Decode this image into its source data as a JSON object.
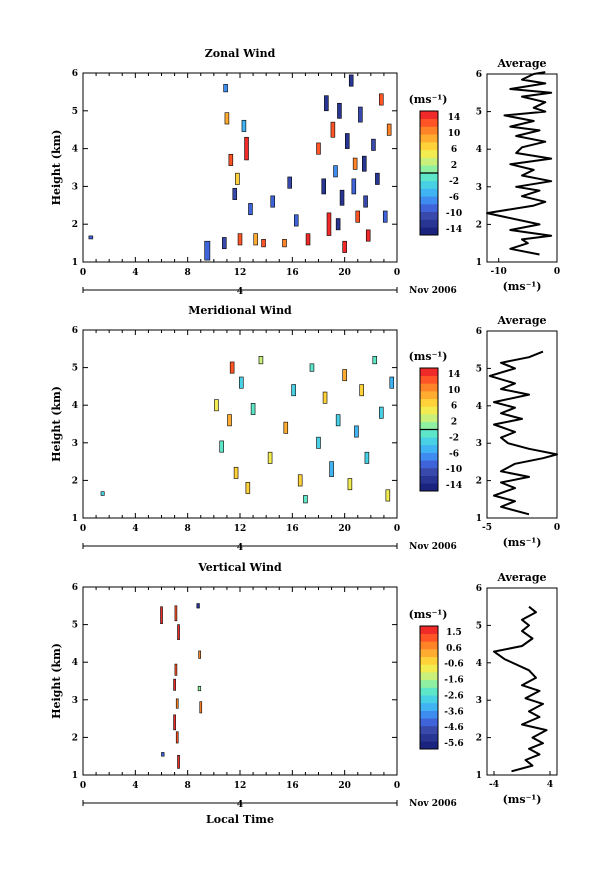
{
  "chart_data": [
    {
      "type": "heatmap",
      "title": "Zonal Wind",
      "ylabel": "Height (km)",
      "xticks": [
        "0",
        "4",
        "8",
        "12",
        "16",
        "20",
        "0"
      ],
      "yticks": [
        "1",
        "2",
        "3",
        "4",
        "5",
        "6"
      ],
      "xlim": [
        0,
        24
      ],
      "ylim": [
        1,
        6
      ],
      "day_label": "4",
      "month_label": "Nov 2006",
      "colorbar": {
        "unit": "(ms⁻¹)",
        "ticks": [
          "14",
          "10",
          "6",
          "2",
          "-2",
          "-6",
          "-10",
          "-14"
        ],
        "range": [
          -16,
          16
        ],
        "colors": [
          "#1a237e",
          "#283593",
          "#3949ab",
          "#3f63d8",
          "#3f8cf0",
          "#40b4f2",
          "#48d1e4",
          "#5ee6c8",
          "#8ef0a0",
          "#c8f07a",
          "#f2ec50",
          "#ffd23a",
          "#ffac30",
          "#ff8428",
          "#ff5426",
          "#f02a28"
        ]
      },
      "cells": [
        [
          0.6,
          1.65,
          -10,
          0.3,
          0.08
        ],
        [
          9.5,
          1.3,
          -10,
          0.4,
          0.5
        ],
        [
          10.8,
          1.5,
          -12,
          0.3,
          0.3
        ],
        [
          10.9,
          5.6,
          -8,
          0.3,
          0.2
        ],
        [
          11.0,
          4.8,
          8,
          0.3,
          0.3
        ],
        [
          11.3,
          3.7,
          12,
          0.3,
          0.3
        ],
        [
          11.6,
          2.8,
          -12,
          0.3,
          0.3
        ],
        [
          12.0,
          1.6,
          12,
          0.3,
          0.3
        ],
        [
          11.8,
          3.2,
          6,
          0.3,
          0.3
        ],
        [
          12.3,
          4.6,
          -6,
          0.3,
          0.3
        ],
        [
          12.5,
          4.0,
          14,
          0.3,
          0.6
        ],
        [
          12.8,
          2.4,
          -10,
          0.3,
          0.3
        ],
        [
          13.2,
          1.6,
          8,
          0.3,
          0.3
        ],
        [
          13.8,
          1.5,
          12,
          0.3,
          0.2
        ],
        [
          14.5,
          2.6,
          -10,
          0.3,
          0.3
        ],
        [
          15.4,
          1.5,
          10,
          0.3,
          0.2
        ],
        [
          15.8,
          3.1,
          -12,
          0.3,
          0.3
        ],
        [
          16.3,
          2.1,
          -10,
          0.3,
          0.3
        ],
        [
          17.2,
          1.6,
          14,
          0.3,
          0.3
        ],
        [
          18.0,
          4.0,
          12,
          0.3,
          0.3
        ],
        [
          18.4,
          3.0,
          -14,
          0.3,
          0.4
        ],
        [
          18.6,
          5.2,
          -14,
          0.3,
          0.4
        ],
        [
          18.8,
          2.0,
          14,
          0.3,
          0.6
        ],
        [
          19.1,
          4.5,
          12,
          0.3,
          0.4
        ],
        [
          19.3,
          3.4,
          -8,
          0.3,
          0.3
        ],
        [
          19.6,
          5.0,
          -14,
          0.3,
          0.4
        ],
        [
          19.8,
          2.7,
          -14,
          0.3,
          0.4
        ],
        [
          20.0,
          1.4,
          14,
          0.3,
          0.3
        ],
        [
          20.2,
          4.2,
          -14,
          0.3,
          0.4
        ],
        [
          20.5,
          5.8,
          -14,
          0.3,
          0.3
        ],
        [
          20.7,
          3.0,
          -10,
          0.3,
          0.4
        ],
        [
          21.0,
          2.2,
          12,
          0.3,
          0.3
        ],
        [
          21.2,
          4.9,
          -12,
          0.3,
          0.4
        ],
        [
          21.5,
          3.6,
          -14,
          0.3,
          0.4
        ],
        [
          21.8,
          1.7,
          14,
          0.3,
          0.3
        ],
        [
          22.2,
          4.1,
          -12,
          0.3,
          0.3
        ],
        [
          22.5,
          3.2,
          -14,
          0.3,
          0.3
        ],
        [
          22.8,
          5.3,
          12,
          0.3,
          0.3
        ],
        [
          23.1,
          2.2,
          -10,
          0.3,
          0.3
        ],
        [
          23.4,
          4.5,
          10,
          0.3,
          0.3
        ],
        [
          19.5,
          2.0,
          -14,
          0.3,
          0.3
        ],
        [
          20.8,
          3.6,
          10,
          0.3,
          0.3
        ],
        [
          21.6,
          2.6,
          -12,
          0.3,
          0.3
        ]
      ],
      "profile": {
        "title": "Average",
        "xlabel": "(ms⁻¹)",
        "xticks": [
          "-10",
          "0"
        ],
        "xlim": [
          -12,
          0
        ],
        "ylim": [
          1,
          6
        ],
        "yticks": [
          "1",
          "2",
          "3",
          "4",
          "5",
          "6"
        ],
        "x": [
          -3,
          -8,
          -5,
          -6,
          -1,
          -8,
          -3,
          -9,
          -12,
          -4,
          -2,
          -6,
          -3,
          -7,
          -1,
          -6,
          -4,
          -8,
          -1,
          -7,
          -6,
          -2,
          -7,
          -3,
          -8,
          -4,
          -9,
          -2,
          -4,
          -2,
          -6,
          -1,
          -8,
          -2,
          -6,
          -4,
          -2
        ],
        "y": [
          1.2,
          1.35,
          1.5,
          1.6,
          1.7,
          1.85,
          2.0,
          2.2,
          2.3,
          2.5,
          2.6,
          2.75,
          2.9,
          3.0,
          3.15,
          3.3,
          3.45,
          3.6,
          3.75,
          3.9,
          4.05,
          4.2,
          4.35,
          4.5,
          4.6,
          4.75,
          4.9,
          5.0,
          5.1,
          5.25,
          5.4,
          5.5,
          5.6,
          5.75,
          5.85,
          6.0,
          6.05
        ]
      }
    },
    {
      "type": "heatmap",
      "title": "Meridional Wind",
      "ylabel": "Height (km)",
      "xticks": [
        "0",
        "4",
        "8",
        "12",
        "16",
        "20",
        "0"
      ],
      "yticks": [
        "1",
        "2",
        "3",
        "4",
        "5",
        "6"
      ],
      "xlim": [
        0,
        24
      ],
      "ylim": [
        1,
        6
      ],
      "day_label": "4",
      "month_label": "Nov 2006",
      "colorbar": {
        "unit": "(ms⁻¹)",
        "ticks": [
          "14",
          "10",
          "6",
          "2",
          "-2",
          "-6",
          "-10",
          "-14"
        ],
        "range": [
          -16,
          16
        ],
        "colors": [
          "#1a237e",
          "#283593",
          "#3949ab",
          "#3f63d8",
          "#3f8cf0",
          "#40b4f2",
          "#48d1e4",
          "#5ee6c8",
          "#8ef0a0",
          "#c8f07a",
          "#f2ec50",
          "#ffd23a",
          "#ffac30",
          "#ff8428",
          "#ff5426",
          "#f02a28"
        ]
      },
      "cells": [
        [
          1.5,
          1.65,
          -4,
          0.25,
          0.1
        ],
        [
          10.2,
          4.0,
          4,
          0.3,
          0.3
        ],
        [
          10.6,
          2.9,
          -2,
          0.3,
          0.3
        ],
        [
          11.2,
          3.6,
          8,
          0.3,
          0.3
        ],
        [
          11.4,
          5.0,
          12,
          0.3,
          0.3
        ],
        [
          11.7,
          2.2,
          6,
          0.3,
          0.3
        ],
        [
          12.1,
          4.6,
          -4,
          0.3,
          0.3
        ],
        [
          12.6,
          1.8,
          6,
          0.3,
          0.3
        ],
        [
          13.0,
          3.9,
          -2,
          0.3,
          0.3
        ],
        [
          13.6,
          5.2,
          2,
          0.3,
          0.2
        ],
        [
          14.3,
          2.6,
          4,
          0.3,
          0.3
        ],
        [
          15.5,
          3.4,
          8,
          0.3,
          0.3
        ],
        [
          16.1,
          4.4,
          -4,
          0.3,
          0.3
        ],
        [
          16.6,
          2.0,
          6,
          0.3,
          0.3
        ],
        [
          17.5,
          5.0,
          -2,
          0.3,
          0.2
        ],
        [
          18.0,
          3.0,
          -4,
          0.3,
          0.3
        ],
        [
          18.5,
          4.2,
          6,
          0.3,
          0.3
        ],
        [
          19.0,
          2.3,
          -6,
          0.3,
          0.4
        ],
        [
          19.5,
          3.6,
          -4,
          0.3,
          0.3
        ],
        [
          20.0,
          4.8,
          8,
          0.3,
          0.3
        ],
        [
          20.4,
          1.9,
          4,
          0.3,
          0.3
        ],
        [
          20.9,
          3.3,
          -6,
          0.3,
          0.3
        ],
        [
          21.3,
          4.4,
          6,
          0.3,
          0.3
        ],
        [
          21.7,
          2.6,
          -4,
          0.3,
          0.3
        ],
        [
          22.3,
          5.2,
          -2,
          0.3,
          0.2
        ],
        [
          22.8,
          3.8,
          -4,
          0.3,
          0.3
        ],
        [
          23.3,
          1.6,
          4,
          0.3,
          0.3
        ],
        [
          23.6,
          4.6,
          -6,
          0.3,
          0.3
        ],
        [
          17.0,
          1.5,
          -2,
          0.3,
          0.2
        ]
      ],
      "profile": {
        "title": "Average",
        "xlabel": "(ms⁻¹)",
        "xticks": [
          "-5",
          "0"
        ],
        "xlim": [
          -5,
          0
        ],
        "ylim": [
          1,
          6
        ],
        "yticks": [
          "1",
          "2",
          "3",
          "4",
          "5",
          "6"
        ],
        "x": [
          -2,
          -4,
          -3,
          -4.5,
          -3,
          -4,
          -2,
          -4,
          -3,
          -1,
          0,
          -2,
          -3.5,
          -4,
          -3,
          -4.5,
          -2.5,
          -4,
          -3,
          -4.5,
          -2,
          -4,
          -3,
          -4.8,
          -3,
          -4,
          -2,
          -1
        ],
        "y": [
          1.1,
          1.3,
          1.45,
          1.6,
          1.8,
          1.95,
          2.1,
          2.25,
          2.45,
          2.6,
          2.7,
          2.85,
          3.0,
          3.15,
          3.3,
          3.5,
          3.65,
          3.8,
          3.95,
          4.1,
          4.3,
          4.45,
          4.6,
          4.8,
          5.0,
          5.15,
          5.3,
          5.45
        ]
      }
    },
    {
      "type": "heatmap",
      "title": "Vertical Wind",
      "ylabel": "Height (km)",
      "xlabel": "Local Time",
      "xticks": [
        "0",
        "4",
        "8",
        "12",
        "16",
        "20",
        "0"
      ],
      "yticks": [
        "1",
        "2",
        "3",
        "4",
        "5",
        "6"
      ],
      "xlim": [
        0,
        24
      ],
      "ylim": [
        1,
        6
      ],
      "day_label": "4",
      "month_label": "Nov 2006",
      "colorbar": {
        "unit": "(ms⁻¹)",
        "ticks": [
          "1.5",
          "0.6",
          "-0.6",
          "-1.6",
          "-2.6",
          "-3.6",
          "-4.6",
          "-5.6"
        ],
        "range": [
          -6.2,
          2.0
        ],
        "colors": [
          "#1a237e",
          "#283593",
          "#3949ab",
          "#3f63d8",
          "#3f8cf0",
          "#40b4f2",
          "#48d1e4",
          "#5ee6c8",
          "#8ef0a0",
          "#c8f07a",
          "#f2ec50",
          "#ffd23a",
          "#ffac30",
          "#ff8428",
          "#ff5426",
          "#f02a28"
        ]
      },
      "cells": [
        [
          6.0,
          5.25,
          1.5,
          0.15,
          0.45
        ],
        [
          7.1,
          5.3,
          1.2,
          0.15,
          0.4
        ],
        [
          7.3,
          4.8,
          1.5,
          0.15,
          0.4
        ],
        [
          7.1,
          3.8,
          1.0,
          0.15,
          0.3
        ],
        [
          7.0,
          3.4,
          1.5,
          0.15,
          0.3
        ],
        [
          7.2,
          2.9,
          0.6,
          0.15,
          0.25
        ],
        [
          7.0,
          2.4,
          1.5,
          0.15,
          0.4
        ],
        [
          7.2,
          2.0,
          1.2,
          0.15,
          0.3
        ],
        [
          7.3,
          1.35,
          1.5,
          0.15,
          0.35
        ],
        [
          6.1,
          1.55,
          -4.6,
          0.2,
          0.1
        ],
        [
          8.8,
          5.5,
          -5.6,
          0.2,
          0.12
        ],
        [
          8.9,
          4.2,
          0.6,
          0.12,
          0.2
        ],
        [
          8.9,
          3.3,
          -1.6,
          0.2,
          0.12
        ],
        [
          9.0,
          2.8,
          0.6,
          0.15,
          0.3
        ]
      ],
      "profile": {
        "title": "Average",
        "xlabel": "(ms⁻¹)",
        "xticks": [
          "-4",
          "4"
        ],
        "xlim": [
          -5,
          5
        ],
        "ylim": [
          1,
          6
        ],
        "yticks": [
          "1",
          "2",
          "3",
          "4",
          "5",
          "6"
        ],
        "x": [
          -1.5,
          1.5,
          0.5,
          2.5,
          1,
          3,
          1.5,
          3.5,
          0,
          2.5,
          1,
          3,
          0.5,
          2.5,
          0,
          2,
          1,
          -2.5,
          -4,
          0,
          1.5,
          0,
          1,
          0,
          2,
          1
        ],
        "y": [
          1.1,
          1.25,
          1.4,
          1.55,
          1.7,
          1.85,
          2.0,
          2.2,
          2.35,
          2.55,
          2.7,
          2.9,
          3.05,
          3.25,
          3.4,
          3.6,
          3.8,
          4.1,
          4.3,
          4.45,
          4.65,
          4.85,
          5.0,
          5.15,
          5.35,
          5.5
        ]
      }
    }
  ]
}
